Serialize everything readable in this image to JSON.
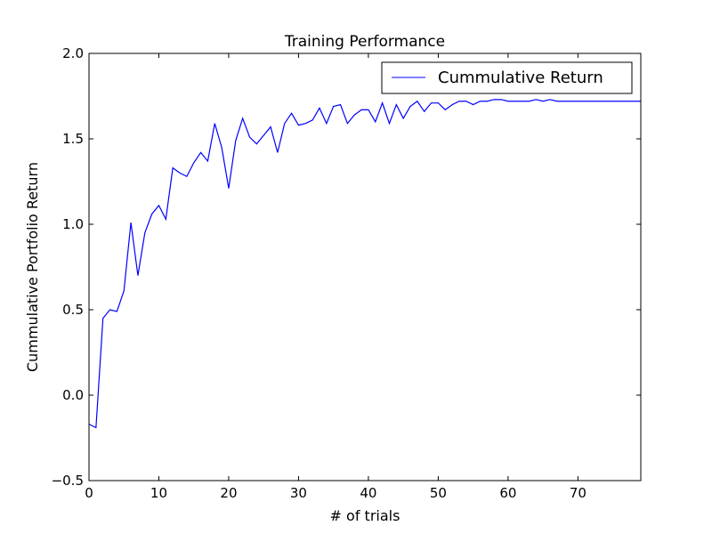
{
  "chart_data": {
    "type": "line",
    "title": "Training Performance",
    "xlabel": "# of trials",
    "ylabel": "Cummulative Portfolio Return",
    "xlim": [
      0,
      79
    ],
    "ylim": [
      -0.5,
      2.0
    ],
    "xticks": [
      0,
      10,
      20,
      30,
      40,
      50,
      60,
      70
    ],
    "yticks": [
      -0.5,
      0.0,
      0.5,
      1.0,
      1.5,
      2.0
    ],
    "xtick_labels": [
      "0",
      "10",
      "20",
      "30",
      "40",
      "50",
      "60",
      "70"
    ],
    "ytick_labels": [
      "−0.5",
      "0.0",
      "0.5",
      "1.0",
      "1.5",
      "2.0"
    ],
    "grid": false,
    "legend_position": "top-right",
    "series": [
      {
        "name": "Cummulative Return",
        "color": "#0000ff",
        "x": [
          0,
          1,
          2,
          3,
          4,
          5,
          6,
          7,
          8,
          9,
          10,
          11,
          12,
          13,
          14,
          15,
          16,
          17,
          18,
          19,
          20,
          21,
          22,
          23,
          24,
          25,
          26,
          27,
          28,
          29,
          30,
          31,
          32,
          33,
          34,
          35,
          36,
          37,
          38,
          39,
          40,
          41,
          42,
          43,
          44,
          45,
          46,
          47,
          48,
          49,
          50,
          51,
          52,
          53,
          54,
          55,
          56,
          57,
          58,
          59,
          60,
          61,
          62,
          63,
          64,
          65,
          66,
          67,
          68,
          69,
          70,
          71,
          72,
          73,
          74,
          75,
          76,
          77,
          78,
          79
        ],
        "y": [
          -0.17,
          -0.19,
          0.45,
          0.5,
          0.49,
          0.61,
          1.01,
          0.7,
          0.95,
          1.06,
          1.11,
          1.03,
          1.33,
          1.3,
          1.28,
          1.36,
          1.42,
          1.37,
          1.59,
          1.45,
          1.21,
          1.49,
          1.62,
          1.51,
          1.47,
          1.52,
          1.57,
          1.42,
          1.59,
          1.65,
          1.58,
          1.59,
          1.61,
          1.68,
          1.59,
          1.69,
          1.7,
          1.59,
          1.64,
          1.67,
          1.67,
          1.6,
          1.71,
          1.59,
          1.7,
          1.62,
          1.69,
          1.72,
          1.66,
          1.71,
          1.71,
          1.67,
          1.7,
          1.72,
          1.72,
          1.7,
          1.72,
          1.72,
          1.73,
          1.73,
          1.72,
          1.72,
          1.72,
          1.72,
          1.73,
          1.72,
          1.73,
          1.72,
          1.72,
          1.72,
          1.72,
          1.72,
          1.72,
          1.72,
          1.72,
          1.72,
          1.72,
          1.72,
          1.72,
          1.72
        ]
      }
    ]
  }
}
